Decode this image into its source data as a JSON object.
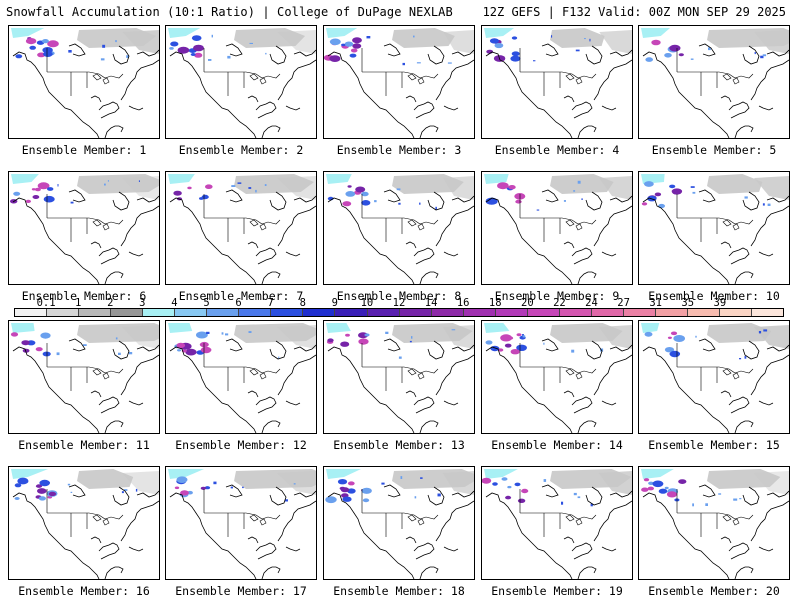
{
  "header": {
    "title": "Snowfall Accumulation (10:1 Ratio) | College of DuPage NEXLAB",
    "run_info": "12Z GEFS | F132 Valid: 00Z MON SEP 29 2025"
  },
  "panels": [
    {
      "label": "Ensemble Member: 1"
    },
    {
      "label": "Ensemble Member: 2"
    },
    {
      "label": "Ensemble Member: 3"
    },
    {
      "label": "Ensemble Member: 4"
    },
    {
      "label": "Ensemble Member: 5"
    },
    {
      "label": "Ensemble Member: 6"
    },
    {
      "label": "Ensemble Member: 7"
    },
    {
      "label": "Ensemble Member: 8"
    },
    {
      "label": "Ensemble Member: 9"
    },
    {
      "label": "Ensemble Member: 10"
    },
    {
      "label": "Ensemble Member: 11"
    },
    {
      "label": "Ensemble Member: 12"
    },
    {
      "label": "Ensemble Member: 13"
    },
    {
      "label": "Ensemble Member: 14"
    },
    {
      "label": "Ensemble Member: 15"
    },
    {
      "label": "Ensemble Member: 16"
    },
    {
      "label": "Ensemble Member: 17"
    },
    {
      "label": "Ensemble Member: 18"
    },
    {
      "label": "Ensemble Member: 19"
    },
    {
      "label": "Ensemble Member: 20"
    }
  ],
  "colorbar": {
    "labels": [
      "0.1",
      "1",
      "2",
      "3",
      "4",
      "5",
      "6",
      "7",
      "8",
      "9",
      "10",
      "12",
      "14",
      "16",
      "18",
      "20",
      "22",
      "24",
      "27",
      "31",
      "35",
      "39"
    ],
    "colors": [
      "#f2f2f2",
      "#d6d6d6",
      "#b8b8b8",
      "#979797",
      "#a8f0f4",
      "#88c8f2",
      "#6aa0ee",
      "#4a78ea",
      "#2c50e0",
      "#1f2fd0",
      "#3a1fb8",
      "#5a20b0",
      "#7624a8",
      "#8e2aa8",
      "#a030b0",
      "#b23ab8",
      "#c646b8",
      "#d456b0",
      "#e068a8",
      "#ea80a4",
      "#f2a0a4",
      "#f8bcb0",
      "#fad4c4",
      "#fce6dc"
    ]
  },
  "map": {
    "land_color": "#ffffff",
    "border_color": "#000000",
    "snow_colors": [
      "#c8c8c8",
      "#a8f0f4",
      "#6aa0ee",
      "#2c50e0",
      "#7624a8",
      "#c646b8"
    ]
  }
}
